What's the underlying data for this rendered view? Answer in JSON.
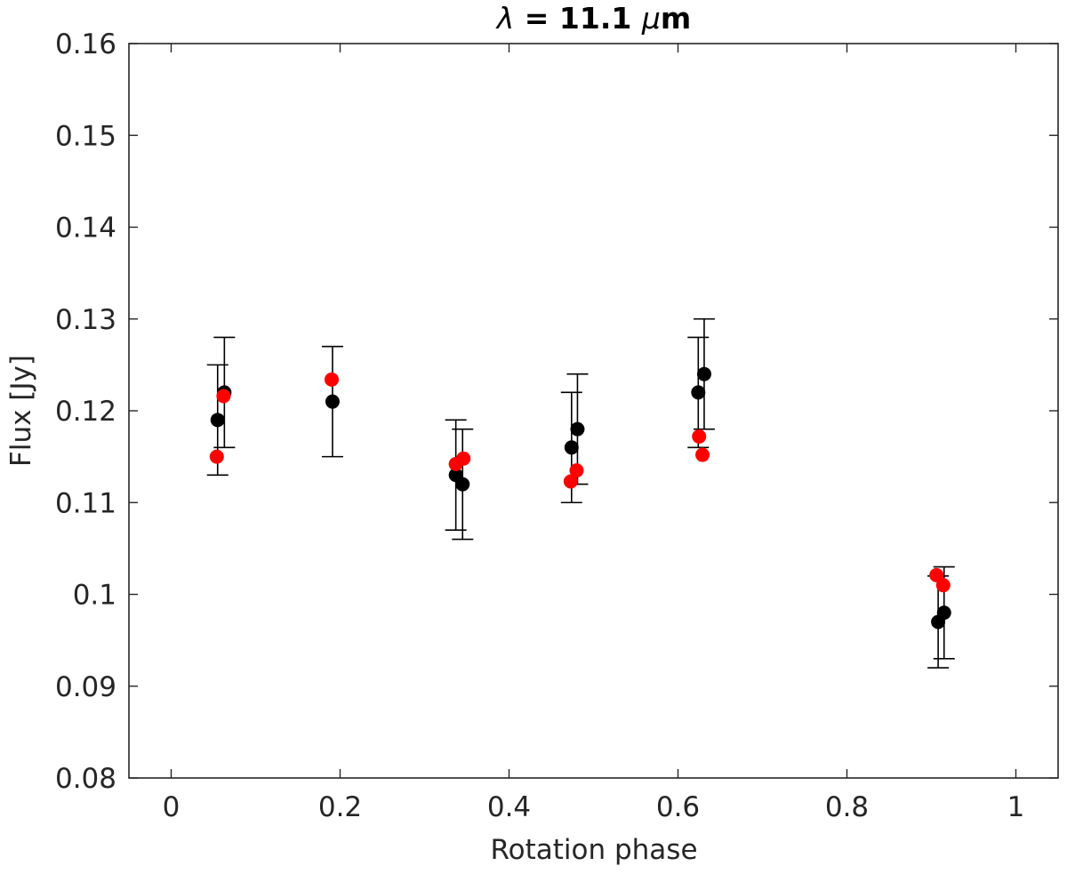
{
  "chart_data": {
    "type": "scatter",
    "title_prefix": "λ",
    "title_rest": " = 11.1 ",
    "title_mu": "μ",
    "title_unit": "m",
    "xlabel": "Rotation phase",
    "ylabel": "Flux [Jy]",
    "xlim": [
      -0.05,
      1.05
    ],
    "ylim": [
      0.08,
      0.16
    ],
    "xticks": [
      0,
      0.2,
      0.4,
      0.6,
      0.8,
      1
    ],
    "xtick_labels": [
      "0",
      "0.2",
      "0.4",
      "0.6",
      "0.8",
      "1"
    ],
    "yticks": [
      0.08,
      0.09,
      0.1,
      0.11,
      0.12,
      0.13,
      0.14,
      0.15,
      0.16
    ],
    "ytick_labels": [
      "0.08",
      "0.09",
      "0.1",
      "0.11",
      "0.12",
      "0.13",
      "0.14",
      "0.15",
      "0.16"
    ],
    "grid": false,
    "series": [
      {
        "color": "#000000",
        "points": [
          {
            "x": 0.055,
            "y": 0.119,
            "err": 0.006
          },
          {
            "x": 0.063,
            "y": 0.122,
            "err": 0.006
          },
          {
            "x": 0.191,
            "y": 0.121,
            "err": 0.006
          },
          {
            "x": 0.337,
            "y": 0.113,
            "err": 0.006
          },
          {
            "x": 0.345,
            "y": 0.112,
            "err": 0.006
          },
          {
            "x": 0.474,
            "y": 0.116,
            "err": 0.006
          },
          {
            "x": 0.481,
            "y": 0.118,
            "err": 0.006
          },
          {
            "x": 0.624,
            "y": 0.122,
            "err": 0.006
          },
          {
            "x": 0.631,
            "y": 0.124,
            "err": 0.006
          },
          {
            "x": 0.908,
            "y": 0.097,
            "err": 0.005
          },
          {
            "x": 0.915,
            "y": 0.098,
            "err": 0.005
          }
        ]
      },
      {
        "color": "#ff0000",
        "points": [
          {
            "x": 0.054,
            "y": 0.115
          },
          {
            "x": 0.062,
            "y": 0.1216
          },
          {
            "x": 0.19,
            "y": 0.1234
          },
          {
            "x": 0.337,
            "y": 0.1142
          },
          {
            "x": 0.346,
            "y": 0.1148
          },
          {
            "x": 0.473,
            "y": 0.1123
          },
          {
            "x": 0.48,
            "y": 0.1135
          },
          {
            "x": 0.625,
            "y": 0.1172
          },
          {
            "x": 0.629,
            "y": 0.1152
          },
          {
            "x": 0.906,
            "y": 0.1021
          },
          {
            "x": 0.914,
            "y": 0.101
          }
        ]
      }
    ]
  }
}
